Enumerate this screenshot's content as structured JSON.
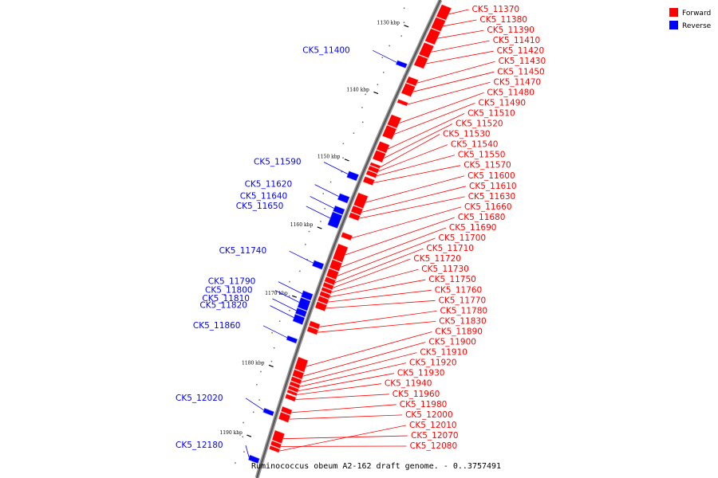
{
  "colors": {
    "forward": "#ff0000",
    "reverse": "#0000ff",
    "backbone": "#777777"
  },
  "legend": [
    {
      "label": "Forward",
      "color": "#ff0000"
    },
    {
      "label": "Reverse",
      "color": "#0000ff"
    }
  ],
  "caption": "Ruminococcus obeum A2-162 draft genome. - 0..3757491",
  "scale": {
    "kbp_min": 1125,
    "kbp_max": 1195
  },
  "ticks": [
    {
      "kbp": 1130,
      "label": "1130 kbp"
    },
    {
      "kbp": 1140,
      "label": "1140 kbp"
    },
    {
      "kbp": 1150,
      "label": "1150 kbp"
    },
    {
      "kbp": 1160,
      "label": "1160 kbp"
    },
    {
      "kbp": 1170,
      "label": "1170 kbp"
    },
    {
      "kbp": 1180,
      "label": "1180 kbp"
    },
    {
      "kbp": 1190,
      "label": "1190 kbp"
    }
  ],
  "genes": [
    {
      "name": "CK5_11370",
      "strand": "forward",
      "start_kbp": 1125.5,
      "end_kbp": 1127.3
    },
    {
      "name": "CK5_11380",
      "strand": "forward",
      "start_kbp": 1127.4,
      "end_kbp": 1129.0
    },
    {
      "name": "CK5_11390",
      "strand": "forward",
      "start_kbp": 1129.1,
      "end_kbp": 1131.0
    },
    {
      "name": "CK5_11400",
      "strand": "reverse",
      "start_kbp": 1134.8,
      "end_kbp": 1135.4
    },
    {
      "name": "CK5_11410",
      "strand": "forward",
      "start_kbp": 1131.2,
      "end_kbp": 1133.0
    },
    {
      "name": "CK5_11420",
      "strand": "forward",
      "start_kbp": 1133.1,
      "end_kbp": 1134.6
    },
    {
      "name": "CK5_11430",
      "strand": "forward",
      "start_kbp": 1136.3,
      "end_kbp": 1137.2
    },
    {
      "name": "CK5_11450",
      "strand": "forward",
      "start_kbp": 1137.3,
      "end_kbp": 1138.8
    },
    {
      "name": "CK5_11470",
      "strand": "forward",
      "start_kbp": 1139.7,
      "end_kbp": 1140.2
    },
    {
      "name": "CK5_11480",
      "strand": "forward",
      "start_kbp": 1142.0,
      "end_kbp": 1143.5
    },
    {
      "name": "CK5_11490",
      "strand": "forward",
      "start_kbp": 1143.6,
      "end_kbp": 1145.2
    },
    {
      "name": "CK5_11510",
      "strand": "forward",
      "start_kbp": 1146.0,
      "end_kbp": 1147.2
    },
    {
      "name": "CK5_11520",
      "strand": "forward",
      "start_kbp": 1147.3,
      "end_kbp": 1148.6
    },
    {
      "name": "CK5_11530",
      "strand": "forward",
      "start_kbp": 1149.1,
      "end_kbp": 1149.5
    },
    {
      "name": "CK5_11540",
      "strand": "forward",
      "start_kbp": 1149.6,
      "end_kbp": 1150.2
    },
    {
      "name": "CK5_11550",
      "strand": "forward",
      "start_kbp": 1150.3,
      "end_kbp": 1150.9
    },
    {
      "name": "CK5_11570",
      "strand": "forward",
      "start_kbp": 1151.2,
      "end_kbp": 1152.0
    },
    {
      "name": "CK5_11590",
      "strand": "reverse",
      "start_kbp": 1151.3,
      "end_kbp": 1152.2
    },
    {
      "name": "CK5_11600",
      "strand": "forward",
      "start_kbp": 1153.6,
      "end_kbp": 1155.4
    },
    {
      "name": "CK5_11610",
      "strand": "forward",
      "start_kbp": 1155.5,
      "end_kbp": 1156.4
    },
    {
      "name": "CK5_11620",
      "strand": "reverse",
      "start_kbp": 1154.6,
      "end_kbp": 1155.5
    },
    {
      "name": "CK5_11630",
      "strand": "forward",
      "start_kbp": 1156.5,
      "end_kbp": 1157.2
    },
    {
      "name": "CK5_11640",
      "strand": "reverse",
      "start_kbp": 1156.4,
      "end_kbp": 1157.2
    },
    {
      "name": "CK5_11650",
      "strand": "reverse",
      "start_kbp": 1157.3,
      "end_kbp": 1159.2
    },
    {
      "name": "CK5_11660",
      "strand": "forward",
      "start_kbp": 1159.4,
      "end_kbp": 1160.1
    },
    {
      "name": "CK5_11680",
      "strand": "forward",
      "start_kbp": 1161.1,
      "end_kbp": 1163.3
    },
    {
      "name": "CK5_11690",
      "strand": "forward",
      "start_kbp": 1163.4,
      "end_kbp": 1164.6
    },
    {
      "name": "CK5_11700",
      "strand": "forward",
      "start_kbp": 1164.7,
      "end_kbp": 1165.8
    },
    {
      "name": "CK5_11710",
      "strand": "forward",
      "start_kbp": 1165.9,
      "end_kbp": 1166.6
    },
    {
      "name": "CK5_11720",
      "strand": "forward",
      "start_kbp": 1166.7,
      "end_kbp": 1167.3
    },
    {
      "name": "CK5_11730",
      "strand": "forward",
      "start_kbp": 1167.4,
      "end_kbp": 1167.9
    },
    {
      "name": "CK5_11740",
      "strand": "reverse",
      "start_kbp": 1164.4,
      "end_kbp": 1165.2
    },
    {
      "name": "CK5_11750",
      "strand": "forward",
      "start_kbp": 1168.0,
      "end_kbp": 1168.6
    },
    {
      "name": "CK5_11760",
      "strand": "forward",
      "start_kbp": 1168.7,
      "end_kbp": 1169.4
    },
    {
      "name": "CK5_11770",
      "strand": "forward",
      "start_kbp": 1169.5,
      "end_kbp": 1170.4
    },
    {
      "name": "CK5_11780",
      "strand": "forward",
      "start_kbp": 1172.3,
      "end_kbp": 1173.0
    },
    {
      "name": "CK5_11790",
      "strand": "reverse",
      "start_kbp": 1168.8,
      "end_kbp": 1169.7
    },
    {
      "name": "CK5_11800",
      "strand": "reverse",
      "start_kbp": 1169.8,
      "end_kbp": 1171.2
    },
    {
      "name": "CK5_11810",
      "strand": "reverse",
      "start_kbp": 1171.3,
      "end_kbp": 1172.1
    },
    {
      "name": "CK5_11820",
      "strand": "reverse",
      "start_kbp": 1172.2,
      "end_kbp": 1173.2
    },
    {
      "name": "CK5_11830",
      "strand": "forward",
      "start_kbp": 1173.1,
      "end_kbp": 1173.8
    },
    {
      "name": "CK5_11860",
      "strand": "reverse",
      "start_kbp": 1175.3,
      "end_kbp": 1175.9
    },
    {
      "name": "CK5_11890",
      "strand": "forward",
      "start_kbp": 1177.5,
      "end_kbp": 1179.2
    },
    {
      "name": "CK5_11900",
      "strand": "forward",
      "start_kbp": 1179.3,
      "end_kbp": 1180.2
    },
    {
      "name": "CK5_11910",
      "strand": "forward",
      "start_kbp": 1180.3,
      "end_kbp": 1180.9
    },
    {
      "name": "CK5_11920",
      "strand": "forward",
      "start_kbp": 1181.0,
      "end_kbp": 1181.5
    },
    {
      "name": "CK5_11930",
      "strand": "forward",
      "start_kbp": 1181.6,
      "end_kbp": 1182.1
    },
    {
      "name": "CK5_11940",
      "strand": "forward",
      "start_kbp": 1182.2,
      "end_kbp": 1182.6
    },
    {
      "name": "CK5_11960",
      "strand": "forward",
      "start_kbp": 1182.8,
      "end_kbp": 1183.4
    },
    {
      "name": "CK5_11980",
      "strand": "forward",
      "start_kbp": 1184.6,
      "end_kbp": 1185.3
    },
    {
      "name": "CK5_12000",
      "strand": "forward",
      "start_kbp": 1185.4,
      "end_kbp": 1186.4
    },
    {
      "name": "CK5_12010",
      "strand": "forward",
      "start_kbp": 1190.2,
      "end_kbp": 1190.7
    },
    {
      "name": "CK5_12020",
      "strand": "reverse",
      "start_kbp": 1185.7,
      "end_kbp": 1186.3
    },
    {
      "name": "CK5_12070",
      "strand": "forward",
      "start_kbp": 1188.0,
      "end_kbp": 1189.4
    },
    {
      "name": "CK5_12080",
      "strand": "forward",
      "start_kbp": 1189.5,
      "end_kbp": 1190.1
    },
    {
      "name": "CK5_12180",
      "strand": "reverse",
      "start_kbp": 1192.4,
      "end_kbp": 1193.1
    }
  ]
}
